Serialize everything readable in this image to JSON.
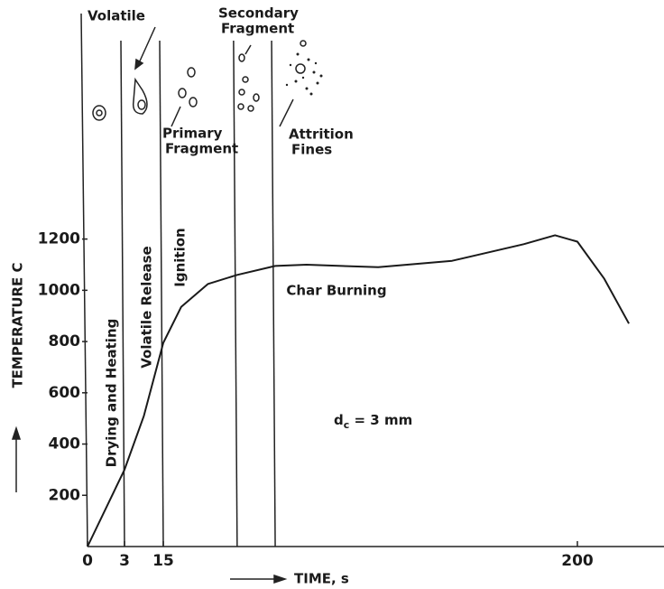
{
  "chart_data": {
    "type": "line",
    "y_label": "TEMPERATURE C",
    "x_label": "TIME, s",
    "x": [
      0,
      3,
      9,
      15,
      23,
      35,
      48,
      65,
      79,
      111,
      144,
      176,
      190,
      200,
      212,
      223
    ],
    "series": [
      {
        "color": "#1a1a1a",
        "values": [
          0,
          300,
          510,
          795,
          935,
          1025,
          1060,
          1095,
          1100,
          1090,
          1115,
          1180,
          1215,
          1190,
          1045,
          870
        ]
      }
    ],
    "xlim": [
      0,
      238
    ],
    "ylim": [
      0,
      2080
    ],
    "xticks": [
      0,
      3,
      15,
      200
    ],
    "yticks": [
      200,
      400,
      600,
      800,
      1000,
      1200
    ],
    "phase_lines": [
      3,
      15,
      48,
      65
    ],
    "phases": [
      "Drying and Heating",
      "Volatile Release",
      "Ignition",
      "Char Burning"
    ],
    "annotation": {
      "main": "d",
      "sub": "c",
      "rest": " = 3 mm"
    },
    "particle_labels": [
      [
        "Volatile"
      ],
      [
        "Primary",
        "Fragment"
      ],
      [
        "Secondary",
        "Fragment"
      ],
      [
        "Attrition",
        "Fines"
      ]
    ]
  }
}
